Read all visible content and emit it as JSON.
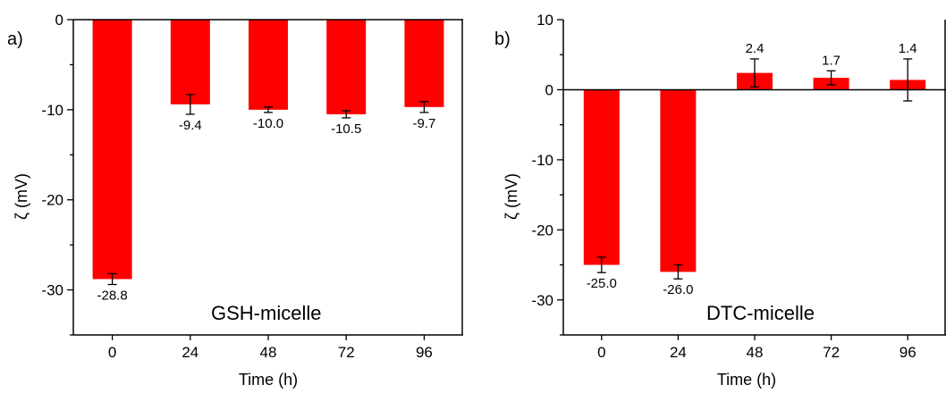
{
  "chart_data": [
    {
      "type": "bar",
      "panel_label": "a)",
      "annotation": "GSH-micelle",
      "xlabel": "Time (h)",
      "ylabel": "ζ (mV)",
      "categories": [
        "0",
        "24",
        "48",
        "72",
        "96"
      ],
      "values": [
        -28.8,
        -9.4,
        -10.0,
        -10.5,
        -9.7
      ],
      "errors": [
        0.6,
        1.1,
        0.3,
        0.4,
        0.6
      ],
      "value_labels": [
        "-28.8",
        "-9.4",
        "-10.0",
        "-10.5",
        "-9.7"
      ],
      "ylim": [
        -35,
        0
      ],
      "yticks": [
        0,
        -10,
        -20,
        -30
      ],
      "ytick_labels": [
        "0",
        "-10",
        "-20",
        "-30"
      ],
      "bar_color": "#ff0000",
      "grid": false
    },
    {
      "type": "bar",
      "panel_label": "b)",
      "annotation": "DTC-micelle",
      "xlabel": "Time (h)",
      "ylabel": "ζ (mV)",
      "categories": [
        "0",
        "24",
        "48",
        "72",
        "96"
      ],
      "values": [
        -25.0,
        -26.0,
        2.4,
        1.7,
        1.4
      ],
      "errors": [
        1.1,
        1.0,
        2.0,
        1.0,
        3.0
      ],
      "value_labels": [
        "-25.0",
        "-26.0",
        "2.4",
        "1.7",
        "1.4"
      ],
      "ylim": [
        -35,
        10
      ],
      "yticks": [
        10,
        0,
        -10,
        -20,
        -30
      ],
      "ytick_labels": [
        "10",
        "0",
        "-10",
        "-20",
        "-30"
      ],
      "bar_color": "#ff0000",
      "grid": false
    }
  ]
}
